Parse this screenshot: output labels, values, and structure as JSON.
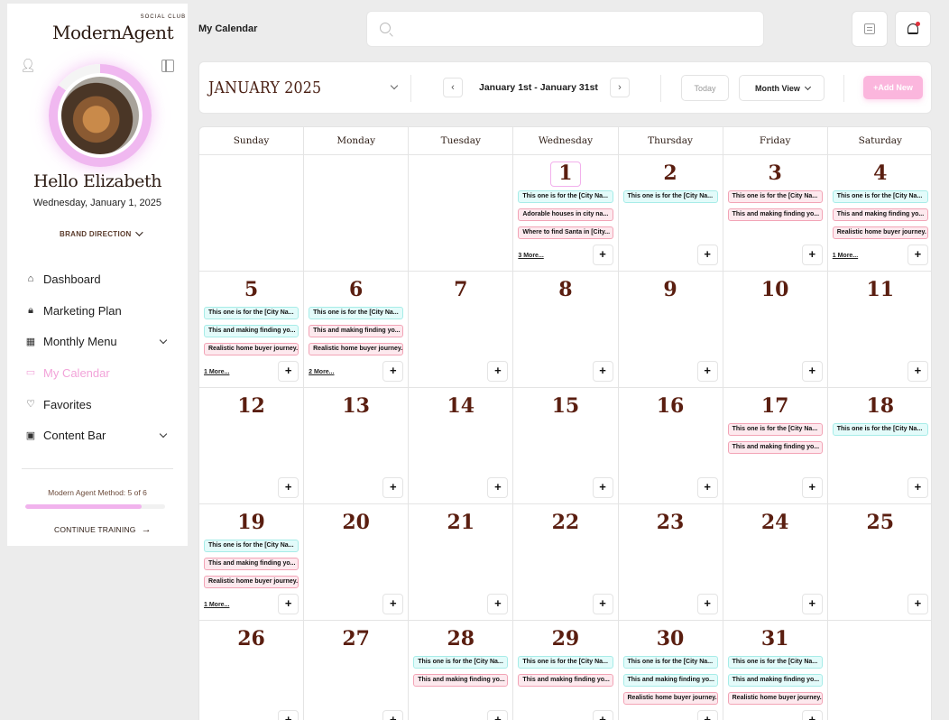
{
  "sidebar": {
    "logo_text": "ModernAgent",
    "logo_badge": "SOCIAL CLUB",
    "greeting": "Hello Elizabeth",
    "date": "Wednesday, January 1, 2025",
    "brand_direction": "BRAND DIRECTION",
    "nav": [
      {
        "label": "Dashboard",
        "icon": "home-icon",
        "glyph": "⌂",
        "expandable": false,
        "active": false
      },
      {
        "label": "Marketing Plan",
        "icon": "lock-icon",
        "glyph": "🔒︎",
        "expandable": false,
        "active": false
      },
      {
        "label": "Monthly Menu",
        "icon": "grid-icon",
        "glyph": "▦",
        "expandable": true,
        "active": false
      },
      {
        "label": "My Calendar",
        "icon": "calendar-icon",
        "glyph": "▭",
        "expandable": false,
        "active": true
      },
      {
        "label": "Favorites",
        "icon": "heart-icon",
        "glyph": "♡",
        "expandable": false,
        "active": false
      },
      {
        "label": "Content Bar",
        "icon": "image-icon",
        "glyph": "▣",
        "expandable": true,
        "active": false
      }
    ],
    "method_label": "Modern Agent Method: 5 of 6",
    "progress_fraction": 0.833,
    "continue_label": "CONTINUE TRAINING"
  },
  "topbar": {
    "page_label": "My Calendar",
    "search_placeholder": ""
  },
  "calendar_header": {
    "month": "JANUARY 2025",
    "range": "January 1st - January 31st",
    "today_label": "Today",
    "view_label": "Month View",
    "add_label": "+Add New"
  },
  "weekdays": [
    "Sunday",
    "Monday",
    "Tuesday",
    "Wednesday",
    "Thursday",
    "Friday",
    "Saturday"
  ],
  "weeks": [
    [
      {
        "day": "",
        "events": [],
        "more": "",
        "plus": false
      },
      {
        "day": "",
        "events": [],
        "more": "",
        "plus": false
      },
      {
        "day": "",
        "events": [],
        "more": "",
        "plus": false
      },
      {
        "day": "1",
        "today": true,
        "events": [
          {
            "text": "This one is for the [City Na...",
            "color": "teal"
          },
          {
            "text": "Adorable houses in city na...",
            "color": "pink"
          },
          {
            "text": "Where to find Santa in [City...",
            "color": "pink"
          }
        ],
        "more": "3 More...",
        "plus": true
      },
      {
        "day": "2",
        "events": [
          {
            "text": "This one is for the [City Na...",
            "color": "teal"
          }
        ],
        "more": "",
        "plus": true
      },
      {
        "day": "3",
        "events": [
          {
            "text": "This one is for the [City Na...",
            "color": "pink"
          },
          {
            "text": "This and making finding yo...",
            "color": "pink"
          }
        ],
        "more": "",
        "plus": true
      },
      {
        "day": "4",
        "events": [
          {
            "text": "This one is for the [City Na...",
            "color": "teal"
          },
          {
            "text": "This and making finding yo...",
            "color": "pink"
          },
          {
            "text": "Realistic home buyer journey.",
            "color": "pink"
          }
        ],
        "more": "1 More...",
        "plus": true
      }
    ],
    [
      {
        "day": "5",
        "events": [
          {
            "text": "This one is for the [City Na...",
            "color": "teal"
          },
          {
            "text": "This and making finding yo...",
            "color": "teal"
          },
          {
            "text": "Realistic home buyer journey.",
            "color": "pink"
          }
        ],
        "more": "1 More...",
        "plus": true
      },
      {
        "day": "6",
        "events": [
          {
            "text": "This one is for the [City Na...",
            "color": "teal"
          },
          {
            "text": "This and making finding yo...",
            "color": "pink"
          },
          {
            "text": "Realistic home buyer journey.",
            "color": "pink"
          }
        ],
        "more": "2 More...",
        "plus": true
      },
      {
        "day": "7",
        "events": [],
        "more": "",
        "plus": true
      },
      {
        "day": "8",
        "events": [],
        "more": "",
        "plus": true
      },
      {
        "day": "9",
        "events": [],
        "more": "",
        "plus": true
      },
      {
        "day": "10",
        "events": [],
        "more": "",
        "plus": true
      },
      {
        "day": "11",
        "events": [],
        "more": "",
        "plus": true
      }
    ],
    [
      {
        "day": "12",
        "events": [],
        "more": "",
        "plus": true
      },
      {
        "day": "13",
        "events": [],
        "more": "",
        "plus": true
      },
      {
        "day": "14",
        "events": [],
        "more": "",
        "plus": true
      },
      {
        "day": "15",
        "events": [],
        "more": "",
        "plus": true
      },
      {
        "day": "16",
        "events": [],
        "more": "",
        "plus": true
      },
      {
        "day": "17",
        "events": [
          {
            "text": "This one is for the [City Na...",
            "color": "pink"
          },
          {
            "text": "This and making finding yo...",
            "color": "pink"
          }
        ],
        "more": "",
        "plus": true
      },
      {
        "day": "18",
        "events": [
          {
            "text": "This one is for the [City Na...",
            "color": "teal"
          }
        ],
        "more": "",
        "plus": true
      }
    ],
    [
      {
        "day": "19",
        "events": [
          {
            "text": "This one is for the [City Na...",
            "color": "teal"
          },
          {
            "text": "This and making finding yo...",
            "color": "pink"
          },
          {
            "text": "Realistic home buyer journey.",
            "color": "pink"
          }
        ],
        "more": "1 More...",
        "plus": true
      },
      {
        "day": "20",
        "events": [],
        "more": "",
        "plus": true
      },
      {
        "day": "21",
        "events": [],
        "more": "",
        "plus": true
      },
      {
        "day": "22",
        "events": [],
        "more": "",
        "plus": true
      },
      {
        "day": "23",
        "events": [],
        "more": "",
        "plus": true
      },
      {
        "day": "24",
        "events": [],
        "more": "",
        "plus": true
      },
      {
        "day": "25",
        "events": [],
        "more": "",
        "plus": true
      }
    ],
    [
      {
        "day": "26",
        "events": [],
        "more": "",
        "plus": true
      },
      {
        "day": "27",
        "events": [],
        "more": "",
        "plus": true
      },
      {
        "day": "28",
        "events": [
          {
            "text": "This one is for the [City Na...",
            "color": "teal"
          },
          {
            "text": "This and making finding yo...",
            "color": "pink"
          }
        ],
        "more": "",
        "plus": true
      },
      {
        "day": "29",
        "events": [
          {
            "text": "This one is for the [City Na...",
            "color": "teal"
          },
          {
            "text": "This and making finding yo...",
            "color": "pink"
          }
        ],
        "more": "",
        "plus": true
      },
      {
        "day": "30",
        "events": [
          {
            "text": "This one is for the [City Na...",
            "color": "teal"
          },
          {
            "text": "This and making finding yo...",
            "color": "teal"
          },
          {
            "text": "Realistic home buyer journey.",
            "color": "pink"
          }
        ],
        "more": "",
        "plus": true
      },
      {
        "day": "31",
        "events": [
          {
            "text": "This one is for the [City Na...",
            "color": "teal"
          },
          {
            "text": "This and making finding yo...",
            "color": "teal"
          },
          {
            "text": "Realistic home buyer journey.",
            "color": "pink"
          }
        ],
        "more": "",
        "plus": true
      },
      {
        "day": "",
        "events": [],
        "more": "",
        "plus": false
      }
    ]
  ]
}
